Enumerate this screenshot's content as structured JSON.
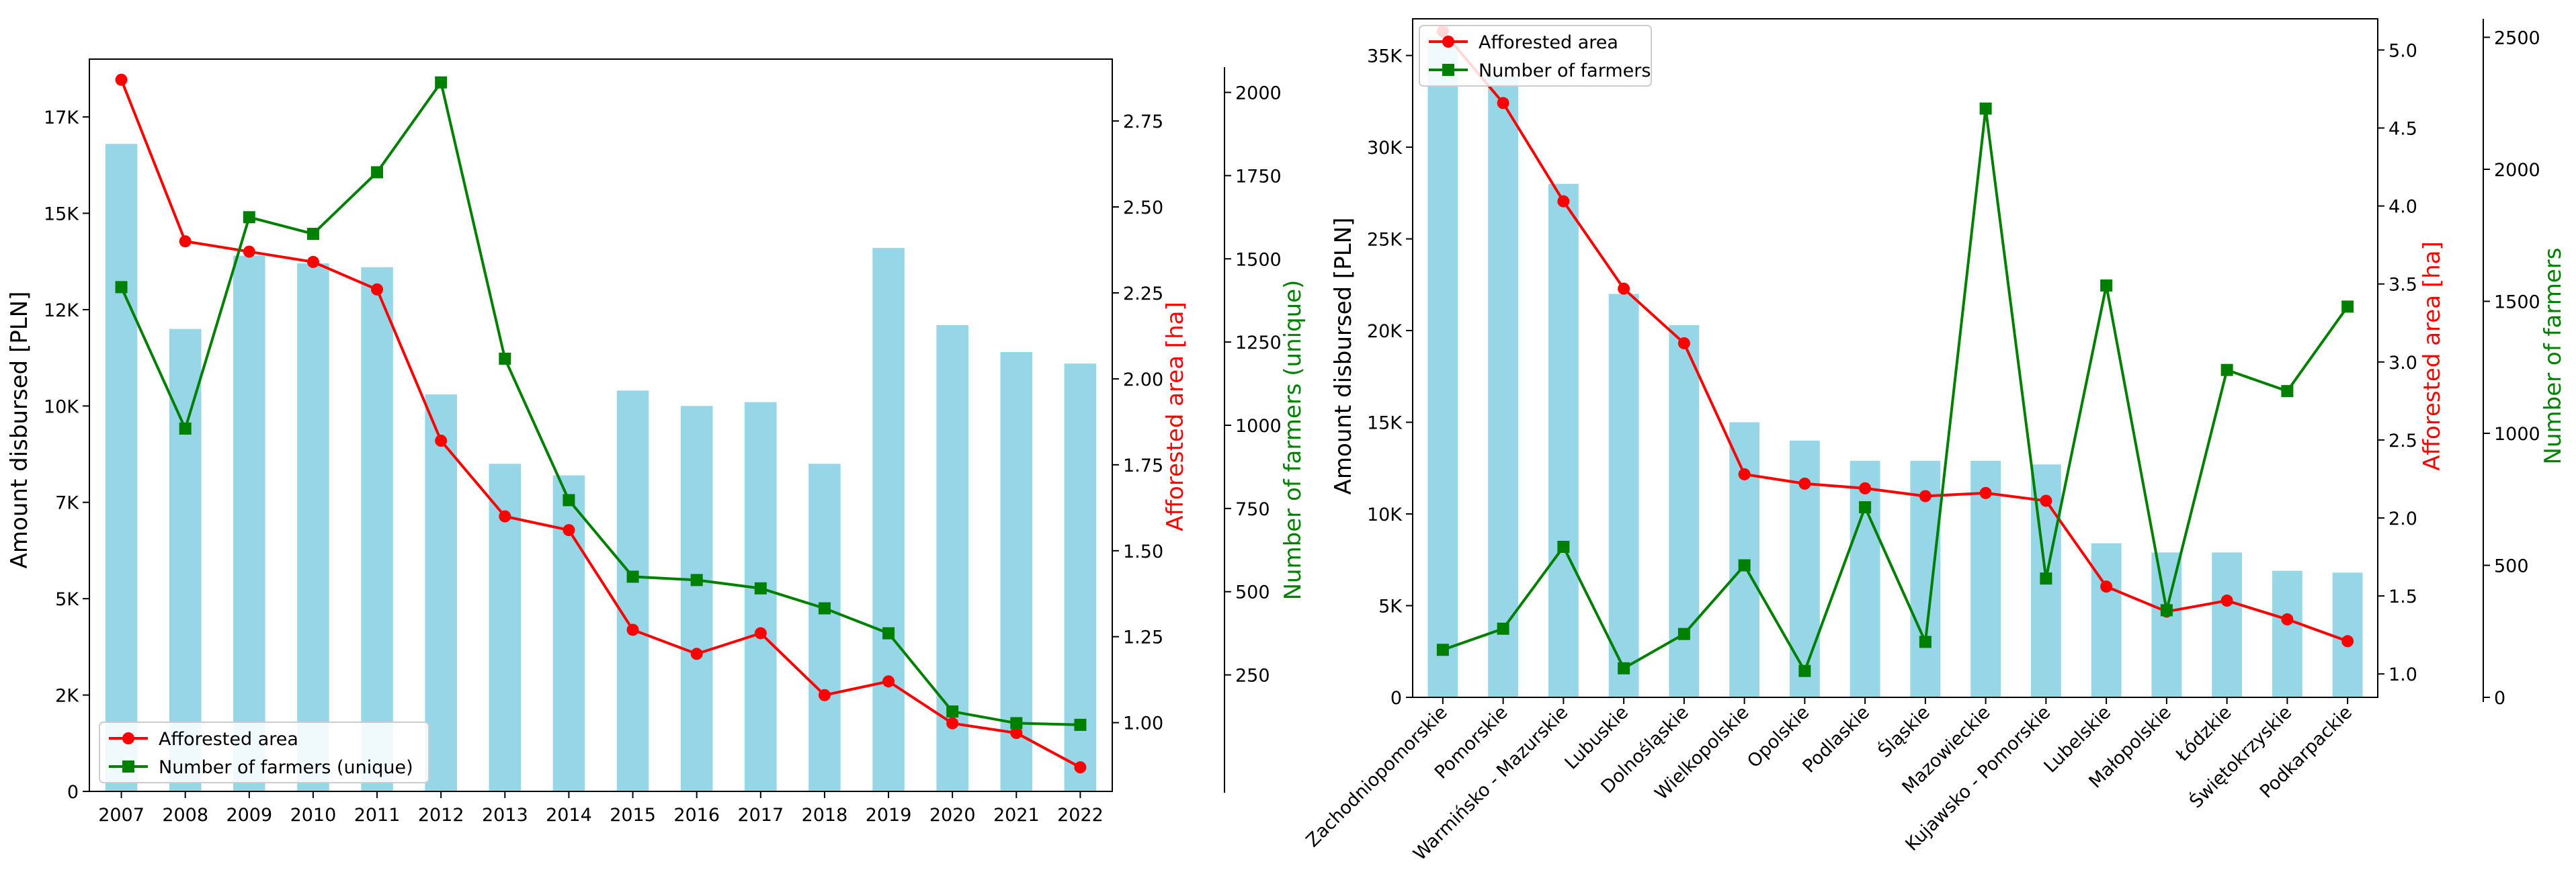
{
  "chart_data": [
    {
      "type": "bar+line",
      "title": "",
      "xlabel": "",
      "ylabel": "Amount disbursed [PLN]",
      "y2label": "Afforested area [ha]",
      "y3label": "Number of farmers (unique)",
      "categories": [
        "2007",
        "2008",
        "2009",
        "2010",
        "2011",
        "2012",
        "2013",
        "2014",
        "2015",
        "2016",
        "2017",
        "2018",
        "2019",
        "2020",
        "2021",
        "2022"
      ],
      "bar_values": [
        16800,
        12000,
        13900,
        13700,
        13600,
        10300,
        8500,
        8200,
        10400,
        10000,
        10100,
        8500,
        14100,
        12100,
        11400,
        11100
      ],
      "series": [
        {
          "name": "Afforested area",
          "axis": "y2",
          "color": "#ff0000",
          "marker": "circle",
          "values": [
            2.87,
            2.4,
            2.37,
            2.34,
            2.26,
            1.82,
            1.6,
            1.56,
            1.27,
            1.2,
            1.26,
            1.08,
            1.12,
            0.998,
            0.97,
            0.87
          ]
        },
        {
          "name": "Number of farmers (unique)",
          "axis": "y3",
          "color": "#008000",
          "marker": "square",
          "values": [
            1415,
            990,
            1625,
            1575,
            1760,
            2030,
            1200,
            775,
            545,
            535,
            510,
            450,
            375,
            140,
            105,
            100
          ]
        }
      ],
      "y_ticks": [
        "0",
        "2K",
        "5K",
        "7K",
        "10K",
        "12K",
        "15K",
        "17K"
      ],
      "y2_ticks": [
        "1.00",
        "1.25",
        "1.50",
        "1.75",
        "2.00",
        "2.25",
        "2.50",
        "2.75"
      ],
      "y3_ticks": [
        "250",
        "500",
        "750",
        "1000",
        "1250",
        "1500",
        "1750",
        "2000"
      ],
      "ylim": [
        0,
        19000
      ],
      "y2lim": [
        0.8,
        2.93
      ],
      "y3lim": [
        -100,
        2100
      ],
      "legend": "lower-left",
      "bar_color": "#97d6e6"
    },
    {
      "type": "bar+line",
      "title": "",
      "xlabel": "",
      "ylabel": "Amount disbursed [PLN]",
      "y2label": "Afforested area [ha]",
      "y3label": "Number of farmers",
      "categories": [
        "Zachodniopomorskie",
        "Pomorskie",
        "Warmińsko - Mazurskie",
        "Lubuskie",
        "Dolnośląskie",
        "Wielkopolskie",
        "Opolskie",
        "Podlaskie",
        "Śląskie",
        "Mazowieckie",
        "Kujawsko - Pomorskie",
        "Lubelskie",
        "Małopolskie",
        "Łódzkie",
        "Świętokrzyskie",
        "Podkarpackie"
      ],
      "bar_values": [
        36000,
        34000,
        28000,
        22000,
        20300,
        15000,
        14000,
        12900,
        12900,
        12900,
        12700,
        8400,
        7900,
        7900,
        6900,
        6800
      ],
      "series": [
        {
          "name": "Afforested area",
          "axis": "y2",
          "color": "#ff0000",
          "marker": "circle",
          "values": [
            5.12,
            4.66,
            4.03,
            3.47,
            3.12,
            2.28,
            2.22,
            2.19,
            2.14,
            2.16,
            2.11,
            1.56,
            1.4,
            1.47,
            1.35,
            1.21
          ]
        },
        {
          "name": "Number of farmers",
          "axis": "y3",
          "color": "#008000",
          "marker": "square",
          "values": [
            180,
            260,
            570,
            110,
            240,
            500,
            100,
            720,
            210,
            2230,
            450,
            1560,
            330,
            1240,
            1160,
            1480
          ]
        }
      ],
      "y_ticks": [
        "0",
        "5K",
        "10K",
        "15K",
        "20K",
        "25K",
        "30K",
        "35K"
      ],
      "y2_ticks": [
        "1.0",
        "1.5",
        "2.0",
        "2.5",
        "3.0",
        "3.5",
        "4.0",
        "4.5",
        "5.0"
      ],
      "y3_ticks": [
        "0",
        "500",
        "1000",
        "1500",
        "2000",
        "2500"
      ],
      "ylim": [
        0,
        37000
      ],
      "y2lim": [
        0.85,
        5.2
      ],
      "y3lim": [
        0,
        2570
      ],
      "legend": "upper-left",
      "bar_color": "#97d6e6"
    }
  ]
}
